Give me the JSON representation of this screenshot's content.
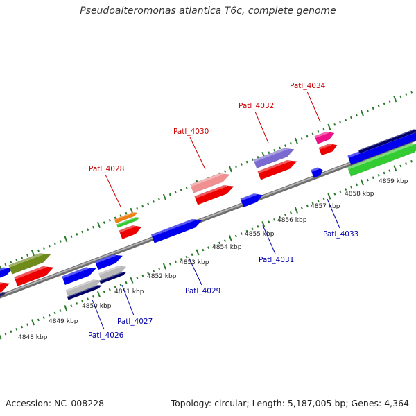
{
  "title": "Pseudoalteromonas atlantica T6c, complete genome",
  "footer": {
    "accession": "Accession: NC_008228",
    "summary": "Topology: circular; Length: 5,187,005 bp; Genes: 4,364"
  },
  "colors": {
    "backbone": "#8c8c8c",
    "tick": "#2a7a2a",
    "upper_label": "#cc0000",
    "lower_label": "#0000aa"
  },
  "kbp_labels": [
    "4848 kbp",
    "4849 kbp",
    "4850 kbp",
    "4851 kbp",
    "4852 kbp",
    "4853 kbp",
    "4854 kbp",
    "4855 kbp",
    "4856 kbp",
    "4857 kbp",
    "4858 kbp",
    "4859 kbp"
  ],
  "upper_genes": [
    {
      "label": "Patl_4028",
      "color": "#cc0000"
    },
    {
      "label": "Patl_4030",
      "color": "#cc0000"
    },
    {
      "label": "Patl_4032",
      "color": "#cc0000"
    },
    {
      "label": "Patl_4034",
      "color": "#cc0000"
    }
  ],
  "lower_genes": [
    {
      "label": "Patl_4026",
      "color": "#0000aa"
    },
    {
      "label": "Patl_4027",
      "color": "#0000aa"
    },
    {
      "label": "Patl_4029",
      "color": "#0000aa"
    },
    {
      "label": "Patl_4031",
      "color": "#0000aa"
    },
    {
      "label": "Patl_4033",
      "color": "#0000aa"
    }
  ]
}
